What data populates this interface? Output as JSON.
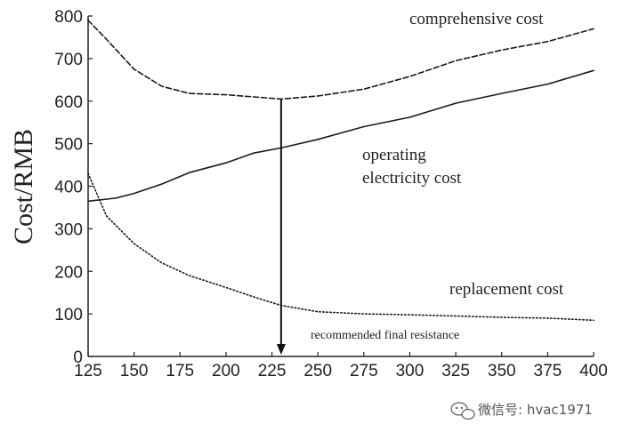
{
  "chart_data": {
    "type": "line",
    "title": "",
    "xlabel": "",
    "ylabel": "Cost/RMB",
    "xlim": [
      125,
      400
    ],
    "ylim": [
      0,
      800
    ],
    "x_ticks": [
      125,
      150,
      175,
      200,
      225,
      250,
      275,
      300,
      325,
      350,
      375,
      400
    ],
    "y_ticks": [
      0,
      100,
      200,
      300,
      400,
      500,
      600,
      700,
      800
    ],
    "grid": false,
    "series": [
      {
        "name": "comprehensive cost",
        "style": "dashed",
        "x": [
          125,
          135,
          150,
          165,
          180,
          200,
          215,
          230,
          250,
          275,
          300,
          325,
          350,
          375,
          400
        ],
        "y": [
          790,
          745,
          675,
          635,
          618,
          615,
          610,
          605,
          612,
          628,
          658,
          695,
          720,
          740,
          770
        ]
      },
      {
        "name": "operating electricity cost",
        "style": "solid",
        "x": [
          125,
          140,
          150,
          165,
          180,
          200,
          215,
          230,
          250,
          275,
          300,
          325,
          350,
          375,
          400
        ],
        "y": [
          365,
          372,
          383,
          405,
          432,
          455,
          478,
          490,
          510,
          540,
          562,
          595,
          618,
          640,
          672
        ]
      },
      {
        "name": "replacement cost",
        "style": "dotted",
        "x": [
          125,
          135,
          150,
          165,
          180,
          200,
          215,
          230,
          250,
          275,
          300,
          325,
          350,
          375,
          400
        ],
        "y": [
          430,
          330,
          265,
          220,
          190,
          162,
          140,
          120,
          105,
          100,
          98,
          95,
          92,
          90,
          85
        ]
      }
    ],
    "annotations": {
      "recommended": {
        "x": 230,
        "label": "recommended final resistance"
      }
    },
    "labels": {
      "comprehensive": "comprehensive cost",
      "operating_line1": "operating",
      "operating_line2": "electricity cost",
      "replacement": "replacement cost"
    }
  },
  "watermark": {
    "text": "微信号: hvac1971",
    "icon": "wechat-icon"
  }
}
